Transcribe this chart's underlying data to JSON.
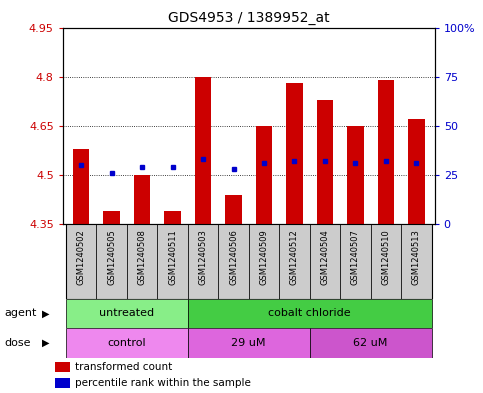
{
  "title": "GDS4953 / 1389952_at",
  "samples": [
    "GSM1240502",
    "GSM1240505",
    "GSM1240508",
    "GSM1240511",
    "GSM1240503",
    "GSM1240506",
    "GSM1240509",
    "GSM1240512",
    "GSM1240504",
    "GSM1240507",
    "GSM1240510",
    "GSM1240513"
  ],
  "transformed_count": [
    4.58,
    4.39,
    4.5,
    4.39,
    4.8,
    4.44,
    4.65,
    4.78,
    4.73,
    4.65,
    4.79,
    4.67
  ],
  "percentile_rank_pct": [
    30,
    26,
    29,
    29,
    33,
    28,
    31,
    32,
    32,
    31,
    32,
    31
  ],
  "y_min": 4.35,
  "y_max": 4.95,
  "y_ticks": [
    4.35,
    4.5,
    4.65,
    4.8,
    4.95
  ],
  "y_tick_labels": [
    "4.35",
    "4.5",
    "4.65",
    "4.8",
    "4.95"
  ],
  "right_y_ticks": [
    0,
    25,
    50,
    75,
    100
  ],
  "right_y_tick_labels": [
    "0",
    "25",
    "50",
    "75",
    "100%"
  ],
  "bar_color": "#cc0000",
  "dot_color": "#0000cc",
  "bar_bottom": 4.35,
  "agent_groups": [
    {
      "label": "untreated",
      "start": 0,
      "end": 4,
      "color": "#88ee88"
    },
    {
      "label": "cobalt chloride",
      "start": 4,
      "end": 12,
      "color": "#44cc44"
    }
  ],
  "dose_groups": [
    {
      "label": "control",
      "start": 0,
      "end": 4,
      "color": "#ee88ee"
    },
    {
      "label": "29 uM",
      "start": 4,
      "end": 8,
      "color": "#dd66dd"
    },
    {
      "label": "62 uM",
      "start": 8,
      "end": 12,
      "color": "#cc55cc"
    }
  ],
  "legend_items": [
    {
      "color": "#cc0000",
      "label": "transformed count"
    },
    {
      "color": "#0000cc",
      "label": "percentile rank within the sample"
    }
  ],
  "sample_bg_color": "#cccccc",
  "tick_label_color_left": "#cc0000",
  "tick_label_color_right": "#0000cc"
}
